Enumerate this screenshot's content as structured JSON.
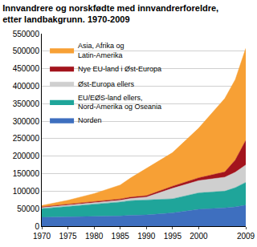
{
  "chart_data": {
    "type": "area",
    "title": "Innvandrere og norskfødte med innvandrerforeldre, etter landbakgrunn. 1970-2009",
    "x": [
      1970,
      1975,
      1980,
      1985,
      1987,
      1990,
      1995,
      2000,
      2005,
      2007,
      2009
    ],
    "series": [
      {
        "name": "Norden",
        "color": "#3e6fbf",
        "values": [
          25000,
          26000,
          27000,
          29000,
          31000,
          32000,
          38000,
          48000,
          52000,
          55000,
          60000
        ]
      },
      {
        "name": "EU/EØS-land ellers, Nord-Amerika og Oseania",
        "color": "#1fa59a",
        "values": [
          25000,
          30000,
          35000,
          40000,
          42000,
          43000,
          40000,
          47000,
          48000,
          55000,
          65000
        ]
      },
      {
        "name": "Øst-Europa ellers",
        "color": "#cfcfcf",
        "values": [
          3000,
          3500,
          4000,
          5000,
          6000,
          8000,
          30000,
          35000,
          40000,
          44000,
          50000
        ]
      },
      {
        "name": "Nye EU-land i Øst-Europa",
        "color": "#a3141d",
        "values": [
          2000,
          2500,
          3000,
          3500,
          3800,
          4000,
          6000,
          8000,
          15000,
          35000,
          70000
        ]
      },
      {
        "name": "Asia, Afrika og Latin-Amerika",
        "color": "#f7a035",
        "values": [
          4000,
          12000,
          24000,
          40000,
          55000,
          78000,
          96000,
          142000,
          210000,
          230000,
          263000
        ]
      }
    ],
    "stacked": true,
    "xlim": [
      1970,
      2009
    ],
    "xticks": [
      1970,
      1975,
      1980,
      1985,
      1990,
      1995,
      2000,
      2009
    ],
    "ylim": [
      0,
      550000
    ],
    "yticks": [
      0,
      50000,
      100000,
      150000,
      200000,
      250000,
      300000,
      350000,
      400000,
      450000,
      500000,
      550000
    ],
    "grid": true,
    "legend": "top left"
  }
}
